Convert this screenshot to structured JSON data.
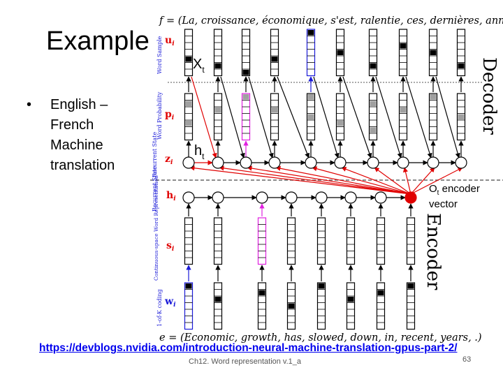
{
  "slide": {
    "title": "Example",
    "bullets": [
      "English – French Machine translation"
    ],
    "link": "https://devblogs.nvidia.com/introduction-neural-machine-translation-gpus-part-2/",
    "footer": "Ch12. Word representation v.1_a",
    "page_number": "63"
  },
  "diagram": {
    "target_sentence": "f = (La, croissance, économique, s'est, ralentie, ces, dernières, années, .)",
    "source_sentence": "e = (Economic, growth, has, slowed, down, in, recent, years, .)",
    "decoder_label": "Decoder",
    "encoder_label": "Encoder",
    "row_labels": {
      "word_sample": "Word Sample",
      "word_probability": "Word Probability",
      "recurrent_state_dec": "Recurrent State",
      "recurrent_state_enc": "Recurrent State",
      "continuous_space": "Continuous-space Word Representation",
      "one_of_k": "1-of-K coding"
    },
    "symbols": {
      "u": "u",
      "p": "p",
      "z": "z",
      "h": "h",
      "s": "s",
      "w": "w",
      "sub": "i"
    },
    "annotations": {
      "xt": "X",
      "xt_sub": "t",
      "ht": "h",
      "ht_sub": "t",
      "ot": "O",
      "ot_sub": "t",
      "ot_rest": " encoder",
      "ot_line2": "vector"
    },
    "colors": {
      "red": "#e00000",
      "blue": "#1a1ad8",
      "magenta": "#e020e0",
      "gray": "#a0a0a0",
      "black": "#000000"
    }
  }
}
